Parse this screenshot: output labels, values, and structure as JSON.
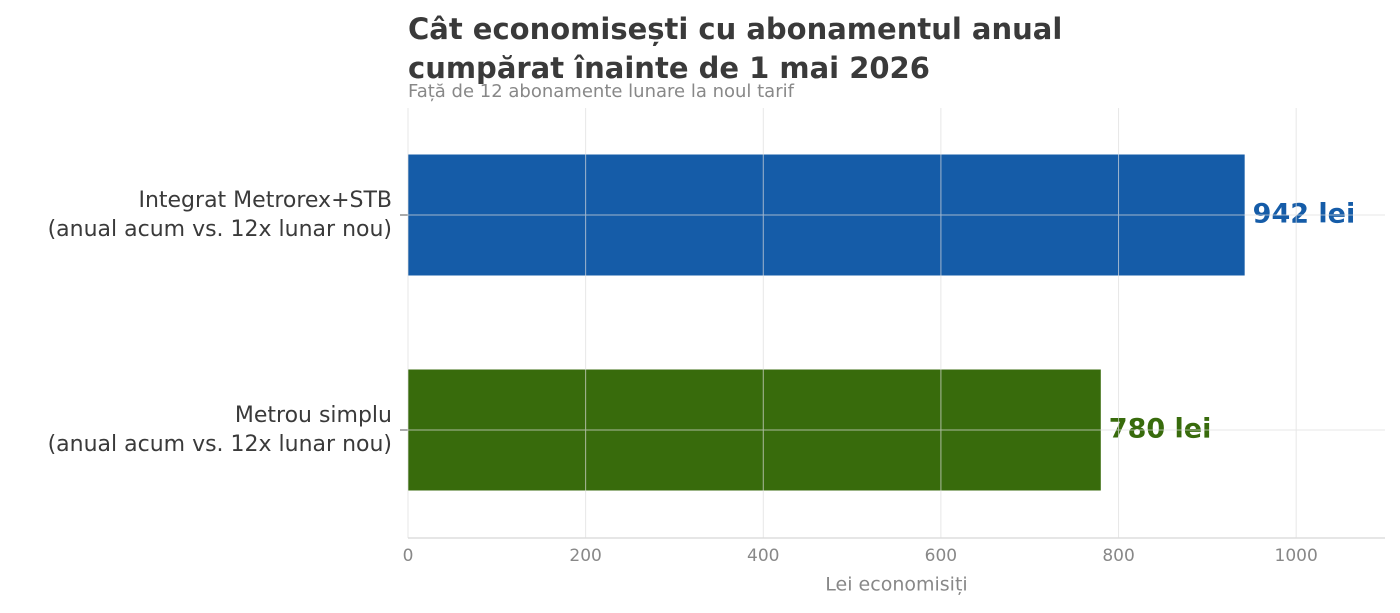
{
  "chart_data": {
    "type": "bar",
    "orientation": "horizontal",
    "title": "Cât economisești cu abonamentul anual\ncumpărat înainte de 1 mai 2026",
    "subtitle": "Față de 12 abonamente lunare la noul tarif",
    "xlabel": "Lei economisiți",
    "categories": [
      "Integrat Metrorex+STB\n(anual acum vs. 12x lunar nou)",
      "Metrou simplu\n(anual acum vs. 12x lunar nou)"
    ],
    "values": [
      942,
      780
    ],
    "value_labels": [
      "942 lei",
      "780 lei"
    ],
    "colors": [
      "#155ca8",
      "#386b0c"
    ],
    "xlim": [
      0,
      1100
    ],
    "xticks": [
      0,
      200,
      400,
      600,
      800,
      1000
    ],
    "grid": true
  }
}
